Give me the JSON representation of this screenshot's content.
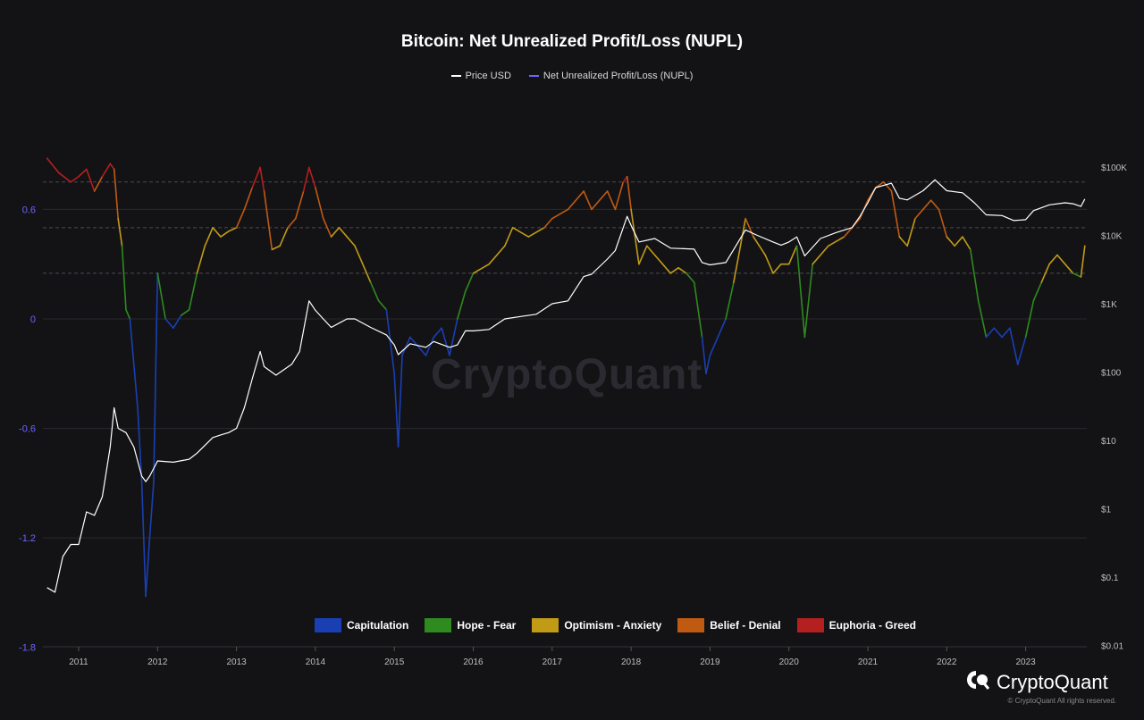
{
  "title": "Bitcoin: Net Unrealized Profit/Loss (NUPL)",
  "legend": [
    {
      "label": "Price USD",
      "color": "#ffffff"
    },
    {
      "label": "Net Unrealized Profit/Loss (NUPL)",
      "color": "#6e63ff"
    }
  ],
  "zones": [
    {
      "label": "Capitulation",
      "color": "#1a3fb3"
    },
    {
      "label": "Hope - Fear",
      "color": "#2f8a1f"
    },
    {
      "label": "Optimism - Anxiety",
      "color": "#c19b15"
    },
    {
      "label": "Belief - Denial",
      "color": "#c05a12"
    },
    {
      "label": "Euphoria - Greed",
      "color": "#b41f1f"
    }
  ],
  "watermark": "CryptoQuant",
  "brand": "CryptoQuant",
  "copyright": "© CryptoQuant All rights reserved.",
  "chart_data": {
    "type": "line",
    "x_ticks": [
      "2011",
      "2012",
      "2013",
      "2014",
      "2015",
      "2016",
      "2017",
      "2018",
      "2019",
      "2020",
      "2021",
      "2022",
      "2023"
    ],
    "y_left_ticks": [
      "0.6",
      "0",
      "-0.6",
      "-1.2",
      "-1.8"
    ],
    "y_left_range": [
      -1.8,
      0.9
    ],
    "y_right_ticks": [
      "$100K",
      "$10K",
      "$1K",
      "$100",
      "$10",
      "$1",
      "$0.1",
      "$0.01"
    ],
    "y_right_scale": "log",
    "y_right_range": [
      0.01,
      100000
    ],
    "reference_lines_nupl": [
      0.75,
      0.5,
      0.25
    ],
    "grid": "horizontal",
    "series": [
      {
        "name": "Net Unrealized Profit/Loss (NUPL)",
        "axis": "left",
        "points": [
          [
            2010.6,
            0.88
          ],
          [
            2010.75,
            0.8
          ],
          [
            2010.9,
            0.75
          ],
          [
            2011.0,
            0.78
          ],
          [
            2011.1,
            0.82
          ],
          [
            2011.2,
            0.7
          ],
          [
            2011.3,
            0.78
          ],
          [
            2011.4,
            0.85
          ],
          [
            2011.45,
            0.82
          ],
          [
            2011.5,
            0.55
          ],
          [
            2011.55,
            0.4
          ],
          [
            2011.6,
            0.05
          ],
          [
            2011.65,
            0.0
          ],
          [
            2011.7,
            -0.25
          ],
          [
            2011.75,
            -0.5
          ],
          [
            2011.8,
            -0.9
          ],
          [
            2011.85,
            -1.52
          ],
          [
            2011.9,
            -1.2
          ],
          [
            2011.95,
            -0.9
          ],
          [
            2012.0,
            0.25
          ],
          [
            2012.1,
            0.0
          ],
          [
            2012.2,
            -0.05
          ],
          [
            2012.3,
            0.02
          ],
          [
            2012.4,
            0.05
          ],
          [
            2012.5,
            0.25
          ],
          [
            2012.6,
            0.4
          ],
          [
            2012.7,
            0.5
          ],
          [
            2012.8,
            0.45
          ],
          [
            2012.9,
            0.48
          ],
          [
            2013.0,
            0.5
          ],
          [
            2013.1,
            0.6
          ],
          [
            2013.2,
            0.72
          ],
          [
            2013.3,
            0.83
          ],
          [
            2013.35,
            0.7
          ],
          [
            2013.45,
            0.38
          ],
          [
            2013.55,
            0.4
          ],
          [
            2013.65,
            0.5
          ],
          [
            2013.75,
            0.55
          ],
          [
            2013.85,
            0.7
          ],
          [
            2013.92,
            0.83
          ],
          [
            2014.0,
            0.72
          ],
          [
            2014.1,
            0.55
          ],
          [
            2014.2,
            0.45
          ],
          [
            2014.3,
            0.5
          ],
          [
            2014.4,
            0.45
          ],
          [
            2014.5,
            0.4
          ],
          [
            2014.6,
            0.3
          ],
          [
            2014.7,
            0.2
          ],
          [
            2014.8,
            0.1
          ],
          [
            2014.9,
            0.05
          ],
          [
            2015.0,
            -0.3
          ],
          [
            2015.05,
            -0.7
          ],
          [
            2015.1,
            -0.2
          ],
          [
            2015.2,
            -0.1
          ],
          [
            2015.3,
            -0.15
          ],
          [
            2015.4,
            -0.2
          ],
          [
            2015.5,
            -0.1
          ],
          [
            2015.6,
            -0.05
          ],
          [
            2015.7,
            -0.2
          ],
          [
            2015.8,
            0.0
          ],
          [
            2015.9,
            0.15
          ],
          [
            2016.0,
            0.25
          ],
          [
            2016.2,
            0.3
          ],
          [
            2016.4,
            0.4
          ],
          [
            2016.5,
            0.5
          ],
          [
            2016.7,
            0.45
          ],
          [
            2016.9,
            0.5
          ],
          [
            2017.0,
            0.55
          ],
          [
            2017.2,
            0.6
          ],
          [
            2017.4,
            0.7
          ],
          [
            2017.5,
            0.6
          ],
          [
            2017.7,
            0.7
          ],
          [
            2017.8,
            0.6
          ],
          [
            2017.9,
            0.75
          ],
          [
            2017.95,
            0.78
          ],
          [
            2018.0,
            0.6
          ],
          [
            2018.1,
            0.3
          ],
          [
            2018.2,
            0.4
          ],
          [
            2018.3,
            0.35
          ],
          [
            2018.4,
            0.3
          ],
          [
            2018.5,
            0.25
          ],
          [
            2018.6,
            0.28
          ],
          [
            2018.7,
            0.25
          ],
          [
            2018.8,
            0.2
          ],
          [
            2018.9,
            -0.1
          ],
          [
            2018.95,
            -0.3
          ],
          [
            2019.0,
            -0.2
          ],
          [
            2019.1,
            -0.1
          ],
          [
            2019.2,
            0.0
          ],
          [
            2019.3,
            0.2
          ],
          [
            2019.45,
            0.55
          ],
          [
            2019.55,
            0.45
          ],
          [
            2019.7,
            0.35
          ],
          [
            2019.8,
            0.25
          ],
          [
            2019.9,
            0.3
          ],
          [
            2020.0,
            0.3
          ],
          [
            2020.1,
            0.4
          ],
          [
            2020.2,
            -0.1
          ],
          [
            2020.3,
            0.3
          ],
          [
            2020.5,
            0.4
          ],
          [
            2020.7,
            0.45
          ],
          [
            2020.9,
            0.55
          ],
          [
            2021.0,
            0.65
          ],
          [
            2021.1,
            0.72
          ],
          [
            2021.2,
            0.75
          ],
          [
            2021.3,
            0.7
          ],
          [
            2021.4,
            0.45
          ],
          [
            2021.5,
            0.4
          ],
          [
            2021.6,
            0.55
          ],
          [
            2021.7,
            0.6
          ],
          [
            2021.8,
            0.65
          ],
          [
            2021.9,
            0.6
          ],
          [
            2022.0,
            0.45
          ],
          [
            2022.1,
            0.4
          ],
          [
            2022.2,
            0.45
          ],
          [
            2022.3,
            0.38
          ],
          [
            2022.4,
            0.1
          ],
          [
            2022.5,
            -0.1
          ],
          [
            2022.6,
            -0.05
          ],
          [
            2022.7,
            -0.1
          ],
          [
            2022.8,
            -0.05
          ],
          [
            2022.9,
            -0.25
          ],
          [
            2023.0,
            -0.1
          ],
          [
            2023.1,
            0.1
          ],
          [
            2023.2,
            0.2
          ],
          [
            2023.3,
            0.3
          ],
          [
            2023.4,
            0.35
          ],
          [
            2023.5,
            0.3
          ],
          [
            2023.6,
            0.25
          ],
          [
            2023.7,
            0.23
          ],
          [
            2023.75,
            0.4
          ]
        ]
      },
      {
        "name": "Price USD",
        "axis": "right",
        "points": [
          [
            2010.6,
            0.07
          ],
          [
            2010.7,
            0.06
          ],
          [
            2010.8,
            0.2
          ],
          [
            2010.9,
            0.3
          ],
          [
            2011.0,
            0.3
          ],
          [
            2011.1,
            0.9
          ],
          [
            2011.2,
            0.8
          ],
          [
            2011.3,
            1.5
          ],
          [
            2011.4,
            8
          ],
          [
            2011.45,
            30
          ],
          [
            2011.5,
            15
          ],
          [
            2011.6,
            13
          ],
          [
            2011.7,
            8
          ],
          [
            2011.8,
            3
          ],
          [
            2011.85,
            2.5
          ],
          [
            2011.9,
            3
          ],
          [
            2012.0,
            5
          ],
          [
            2012.2,
            4.8
          ],
          [
            2012.4,
            5.3
          ],
          [
            2012.5,
            6.5
          ],
          [
            2012.7,
            11
          ],
          [
            2012.8,
            12
          ],
          [
            2012.9,
            13
          ],
          [
            2013.0,
            15
          ],
          [
            2013.1,
            30
          ],
          [
            2013.2,
            80
          ],
          [
            2013.3,
            200
          ],
          [
            2013.35,
            120
          ],
          [
            2013.5,
            90
          ],
          [
            2013.7,
            130
          ],
          [
            2013.8,
            200
          ],
          [
            2013.92,
            1100
          ],
          [
            2014.0,
            800
          ],
          [
            2014.1,
            600
          ],
          [
            2014.2,
            450
          ],
          [
            2014.4,
            600
          ],
          [
            2014.5,
            600
          ],
          [
            2014.7,
            450
          ],
          [
            2014.9,
            350
          ],
          [
            2015.0,
            250
          ],
          [
            2015.05,
            180
          ],
          [
            2015.2,
            260
          ],
          [
            2015.4,
            230
          ],
          [
            2015.5,
            280
          ],
          [
            2015.7,
            230
          ],
          [
            2015.8,
            250
          ],
          [
            2015.9,
            400
          ],
          [
            2016.0,
            400
          ],
          [
            2016.2,
            420
          ],
          [
            2016.4,
            600
          ],
          [
            2016.6,
            650
          ],
          [
            2016.8,
            700
          ],
          [
            2017.0,
            1000
          ],
          [
            2017.2,
            1100
          ],
          [
            2017.4,
            2500
          ],
          [
            2017.5,
            2700
          ],
          [
            2017.7,
            4500
          ],
          [
            2017.8,
            6000
          ],
          [
            2017.95,
            19000
          ],
          [
            2018.0,
            14000
          ],
          [
            2018.1,
            8000
          ],
          [
            2018.3,
            9000
          ],
          [
            2018.5,
            6500
          ],
          [
            2018.8,
            6300
          ],
          [
            2018.9,
            4000
          ],
          [
            2019.0,
            3700
          ],
          [
            2019.2,
            4000
          ],
          [
            2019.45,
            12000
          ],
          [
            2019.6,
            10000
          ],
          [
            2019.8,
            8000
          ],
          [
            2019.9,
            7200
          ],
          [
            2020.0,
            8000
          ],
          [
            2020.1,
            9500
          ],
          [
            2020.2,
            5000
          ],
          [
            2020.4,
            9000
          ],
          [
            2020.6,
            11000
          ],
          [
            2020.8,
            13000
          ],
          [
            2020.9,
            19000
          ],
          [
            2021.0,
            30000
          ],
          [
            2021.1,
            50000
          ],
          [
            2021.3,
            58000
          ],
          [
            2021.4,
            35000
          ],
          [
            2021.5,
            33000
          ],
          [
            2021.7,
            45000
          ],
          [
            2021.85,
            65000
          ],
          [
            2022.0,
            45000
          ],
          [
            2022.2,
            42000
          ],
          [
            2022.35,
            30000
          ],
          [
            2022.5,
            20000
          ],
          [
            2022.7,
            19500
          ],
          [
            2022.85,
            16500
          ],
          [
            2023.0,
            17000
          ],
          [
            2023.1,
            23000
          ],
          [
            2023.3,
            28000
          ],
          [
            2023.5,
            30000
          ],
          [
            2023.6,
            29000
          ],
          [
            2023.7,
            26500
          ],
          [
            2023.75,
            34000
          ]
        ]
      }
    ]
  }
}
